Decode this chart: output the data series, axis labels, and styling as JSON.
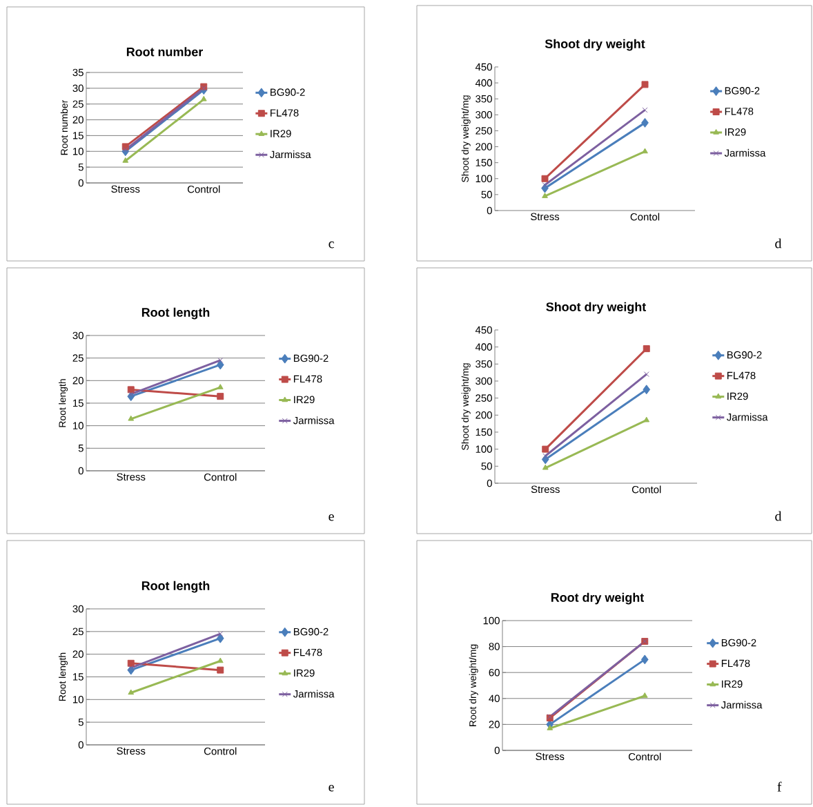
{
  "chart_data": [
    {
      "type": "line",
      "title": "Root number",
      "ylabel": "Root number",
      "categories": [
        "Stress",
        "Control"
      ],
      "ylim": [
        0,
        35
      ],
      "yticks": [
        0,
        5,
        10,
        15,
        20,
        25,
        30,
        35
      ],
      "grid": "y",
      "legend": "right",
      "annotations": [
        "c"
      ],
      "series": [
        {
          "name": "BG90-2",
          "color": "#4a7ebb",
          "marker": "diamond",
          "values": [
            10,
            29.5
          ]
        },
        {
          "name": "FL478",
          "color": "#be4b48",
          "marker": "square",
          "values": [
            11.5,
            30.5
          ]
        },
        {
          "name": "IR29",
          "color": "#98b954",
          "marker": "triangle",
          "values": [
            7,
            26.5
          ]
        },
        {
          "name": "Jarmissa",
          "color": "#7d60a0",
          "marker": "cross",
          "values": [
            10.5,
            30
          ]
        }
      ]
    },
    {
      "type": "line",
      "title": "Shoot dry weight",
      "ylabel": "Shoot dry weight/mg",
      "categories": [
        "Stress",
        "Contol"
      ],
      "ylim": [
        0,
        450
      ],
      "yticks": [
        0,
        50,
        100,
        150,
        200,
        250,
        300,
        350,
        400,
        450
      ],
      "legend": "right",
      "annotations": [
        "d"
      ],
      "series": [
        {
          "name": "BG90-2",
          "color": "#4a7ebb",
          "marker": "diamond",
          "values": [
            70,
            275
          ]
        },
        {
          "name": "FL478",
          "color": "#be4b48",
          "marker": "square",
          "values": [
            100,
            395
          ]
        },
        {
          "name": "IR29",
          "color": "#98b954",
          "marker": "triangle",
          "values": [
            45,
            185
          ]
        },
        {
          "name": "Jarmissa",
          "color": "#7d60a0",
          "marker": "cross",
          "values": [
            80,
            315
          ]
        }
      ]
    },
    {
      "type": "line",
      "title": "Root length",
      "ylabel": "Root length",
      "categories": [
        "Stress",
        "Control"
      ],
      "ylim": [
        0,
        30
      ],
      "yticks": [
        0,
        5,
        10,
        15,
        20,
        25,
        30
      ],
      "grid": "y",
      "legend": "right",
      "annotations": [
        "e"
      ],
      "series": [
        {
          "name": "BG90-2",
          "color": "#4a7ebb",
          "marker": "diamond",
          "values": [
            16.5,
            23.5
          ]
        },
        {
          "name": "FL478",
          "color": "#be4b48",
          "marker": "square",
          "values": [
            18,
            16.5
          ]
        },
        {
          "name": "IR29",
          "color": "#98b954",
          "marker": "triangle",
          "values": [
            11.5,
            18.5
          ]
        },
        {
          "name": "Jarmissa",
          "color": "#7d60a0",
          "marker": "cross",
          "values": [
            17,
            24.5
          ]
        }
      ]
    },
    {
      "type": "line",
      "title": "Shoot dry weight",
      "ylabel": "Shoot dry weight/mg",
      "categories": [
        "Stress",
        "Contol"
      ],
      "ylim": [
        0,
        450
      ],
      "yticks": [
        0,
        50,
        100,
        150,
        200,
        250,
        300,
        350,
        400,
        450
      ],
      "legend": "right",
      "annotations": [
        "d"
      ],
      "series": [
        {
          "name": "BG90-2",
          "color": "#4a7ebb",
          "marker": "diamond",
          "values": [
            70,
            275
          ]
        },
        {
          "name": "FL478",
          "color": "#be4b48",
          "marker": "square",
          "values": [
            100,
            395
          ]
        },
        {
          "name": "IR29",
          "color": "#98b954",
          "marker": "triangle",
          "values": [
            45,
            185
          ]
        },
        {
          "name": "Jarmissa",
          "color": "#7d60a0",
          "marker": "cross",
          "values": [
            80,
            320
          ]
        }
      ]
    },
    {
      "type": "line",
      "title": "Root length",
      "ylabel": "Root length",
      "categories": [
        "Stress",
        "Control"
      ],
      "ylim": [
        0,
        30
      ],
      "yticks": [
        0,
        5,
        10,
        15,
        20,
        25,
        30
      ],
      "grid": "y",
      "legend": "right",
      "annotations": [
        "e"
      ],
      "series": [
        {
          "name": "BG90-2",
          "color": "#4a7ebb",
          "marker": "diamond",
          "values": [
            16.5,
            23.5
          ]
        },
        {
          "name": "FL478",
          "color": "#be4b48",
          "marker": "square",
          "values": [
            18,
            16.5
          ]
        },
        {
          "name": "IR29",
          "color": "#98b954",
          "marker": "triangle",
          "values": [
            11.5,
            18.5
          ]
        },
        {
          "name": "Jarmissa",
          "color": "#7d60a0",
          "marker": "cross",
          "values": [
            17,
            24.5
          ]
        }
      ]
    },
    {
      "type": "line",
      "title": "Root dry weight",
      "ylabel": "Root dry weight/mg",
      "categories": [
        "Stress",
        "Control"
      ],
      "ylim": [
        0,
        100
      ],
      "yticks": [
        0,
        20,
        40,
        60,
        80,
        100
      ],
      "grid": "y",
      "legend": "right",
      "annotations": [
        "f"
      ],
      "series": [
        {
          "name": "BG90-2",
          "color": "#4a7ebb",
          "marker": "diamond",
          "values": [
            20,
            70
          ]
        },
        {
          "name": "FL478",
          "color": "#be4b48",
          "marker": "square",
          "values": [
            25,
            84
          ]
        },
        {
          "name": "IR29",
          "color": "#98b954",
          "marker": "triangle",
          "values": [
            17,
            42
          ]
        },
        {
          "name": "Jarmissa",
          "color": "#7d60a0",
          "marker": "cross",
          "values": [
            26,
            84
          ]
        }
      ]
    }
  ]
}
